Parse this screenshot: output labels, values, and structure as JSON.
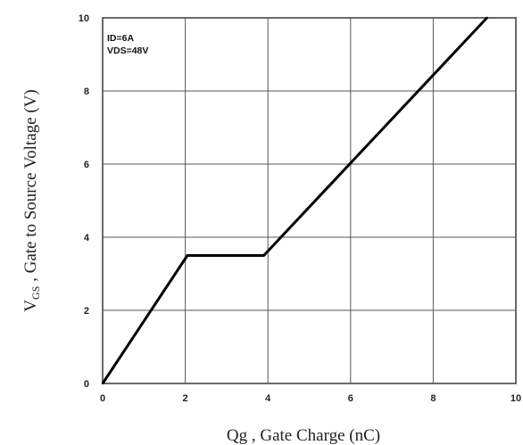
{
  "chart_data": {
    "type": "line",
    "xlabel": "Qg , Gate Charge (nC)",
    "ylabel": "V",
    "ylabel_sub": "GS",
    "ylabel_rest": " , Gate to Source Voltage (V)",
    "xlim": [
      0,
      10
    ],
    "ylim": [
      0,
      10
    ],
    "xticks": [
      "0",
      "2",
      "4",
      "6",
      "8",
      "10"
    ],
    "yticks": [
      "0",
      "2",
      "4",
      "6",
      "8",
      "10"
    ],
    "grid": true,
    "annotations": [
      "ID=6A",
      "VDS=48V"
    ],
    "series": [
      {
        "x": [
          0,
          2.05,
          3.9,
          9.3
        ],
        "y": [
          0,
          3.5,
          3.5,
          10
        ],
        "color": "#000000"
      }
    ]
  }
}
